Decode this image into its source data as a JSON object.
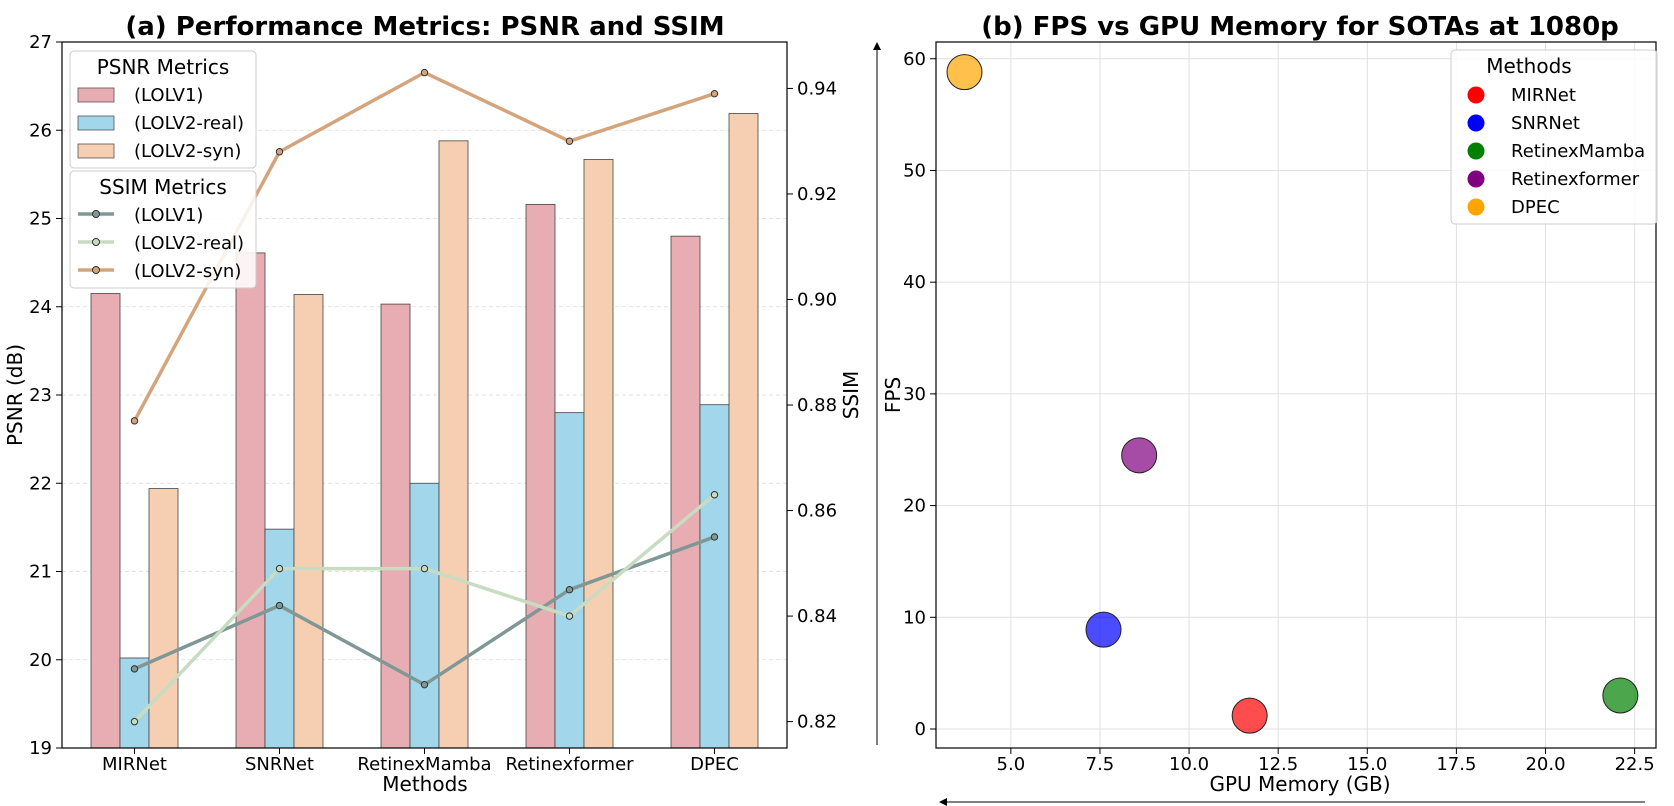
{
  "colors": {
    "psnr_lolv1": "#e8adb2",
    "psnr_lolv2_real": "#a2d6ea",
    "psnr_lolv2_syn": "#f6cfb3",
    "ssim_lolv1": "#7f9896",
    "ssim_lolv2_real": "#c8dcc2",
    "ssim_lolv2_syn": "#d4a57c",
    "scatter": {
      "MIRNet": "#ff0000",
      "SNRNet": "#0000ff",
      "RetinexMamba": "#008000",
      "Retinexformer": "#800080",
      "DPEC": "#ffa500"
    }
  },
  "chart_data": [
    {
      "type": "bar",
      "title": "(a) Performance Metrics: PSNR and SSIM",
      "xlabel": "Methods",
      "ylabel": "PSNR (dB)",
      "y2label": "SSIM",
      "categories": [
        "MIRNet",
        "SNRNet",
        "RetinexMamba",
        "Retinexformer",
        "DPEC"
      ],
      "ylim": [
        19,
        27
      ],
      "yticks": [
        "19",
        "20",
        "21",
        "22",
        "23",
        "24",
        "25",
        "26",
        "27"
      ],
      "y2lim": [
        0.815,
        0.9488
      ],
      "y2ticks": [
        "0.82",
        "0.84",
        "0.86",
        "0.88",
        "0.90",
        "0.92",
        "0.94"
      ],
      "grid": "horizontal",
      "legend_psnr": {
        "title": "PSNR Metrics",
        "position": "upper-left",
        "labels": [
          "(LOLV1)",
          "(LOLV2-real)",
          "(LOLV2-syn)"
        ]
      },
      "legend_ssim": {
        "title": "SSIM Metrics",
        "position": "upper-left",
        "labels": [
          "(LOLV1)",
          "(LOLV2-real)",
          "(LOLV2-syn)"
        ]
      },
      "bar_series": [
        {
          "name": "(LOLV1)",
          "values": [
            24.15,
            24.61,
            24.03,
            25.16,
            24.8
          ]
        },
        {
          "name": "(LOLV2-real)",
          "values": [
            20.02,
            21.48,
            22.0,
            22.8,
            22.89
          ]
        },
        {
          "name": "(LOLV2-syn)",
          "values": [
            21.94,
            24.14,
            25.88,
            25.67,
            26.19
          ]
        }
      ],
      "line_series": [
        {
          "name": "(LOLV1)",
          "values": [
            0.83,
            0.842,
            0.827,
            0.845,
            0.855
          ]
        },
        {
          "name": "(LOLV2-real)",
          "values": [
            0.82,
            0.849,
            0.849,
            0.84,
            0.863
          ]
        },
        {
          "name": "(LOLV2-syn)",
          "values": [
            0.877,
            0.928,
            0.943,
            0.93,
            0.939
          ]
        }
      ]
    },
    {
      "type": "scatter",
      "title": "(b) FPS vs GPU Memory for SOTAs at 1080p",
      "xlabel": "GPU Memory (GB)",
      "ylabel": "FPS",
      "xlim": [
        2.9,
        23.1
      ],
      "xticks": [
        "5.0",
        "7.5",
        "10.0",
        "12.5",
        "15.0",
        "17.5",
        "20.0",
        "22.5"
      ],
      "ylim": [
        -1.7,
        61.5
      ],
      "yticks": [
        "0",
        "10",
        "20",
        "30",
        "40",
        "50",
        "60"
      ],
      "grid": true,
      "legend": {
        "title": "Methods",
        "position": "top-right"
      },
      "points": [
        {
          "name": "MIRNet",
          "x": 11.7,
          "y": 1.2
        },
        {
          "name": "SNRNet",
          "x": 7.6,
          "y": 8.9
        },
        {
          "name": "RetinexMamba",
          "x": 22.1,
          "y": 3.0
        },
        {
          "name": "Retinexformer",
          "x": 8.6,
          "y": 24.5
        },
        {
          "name": "DPEC",
          "x": 3.7,
          "y": 58.8
        }
      ]
    }
  ]
}
